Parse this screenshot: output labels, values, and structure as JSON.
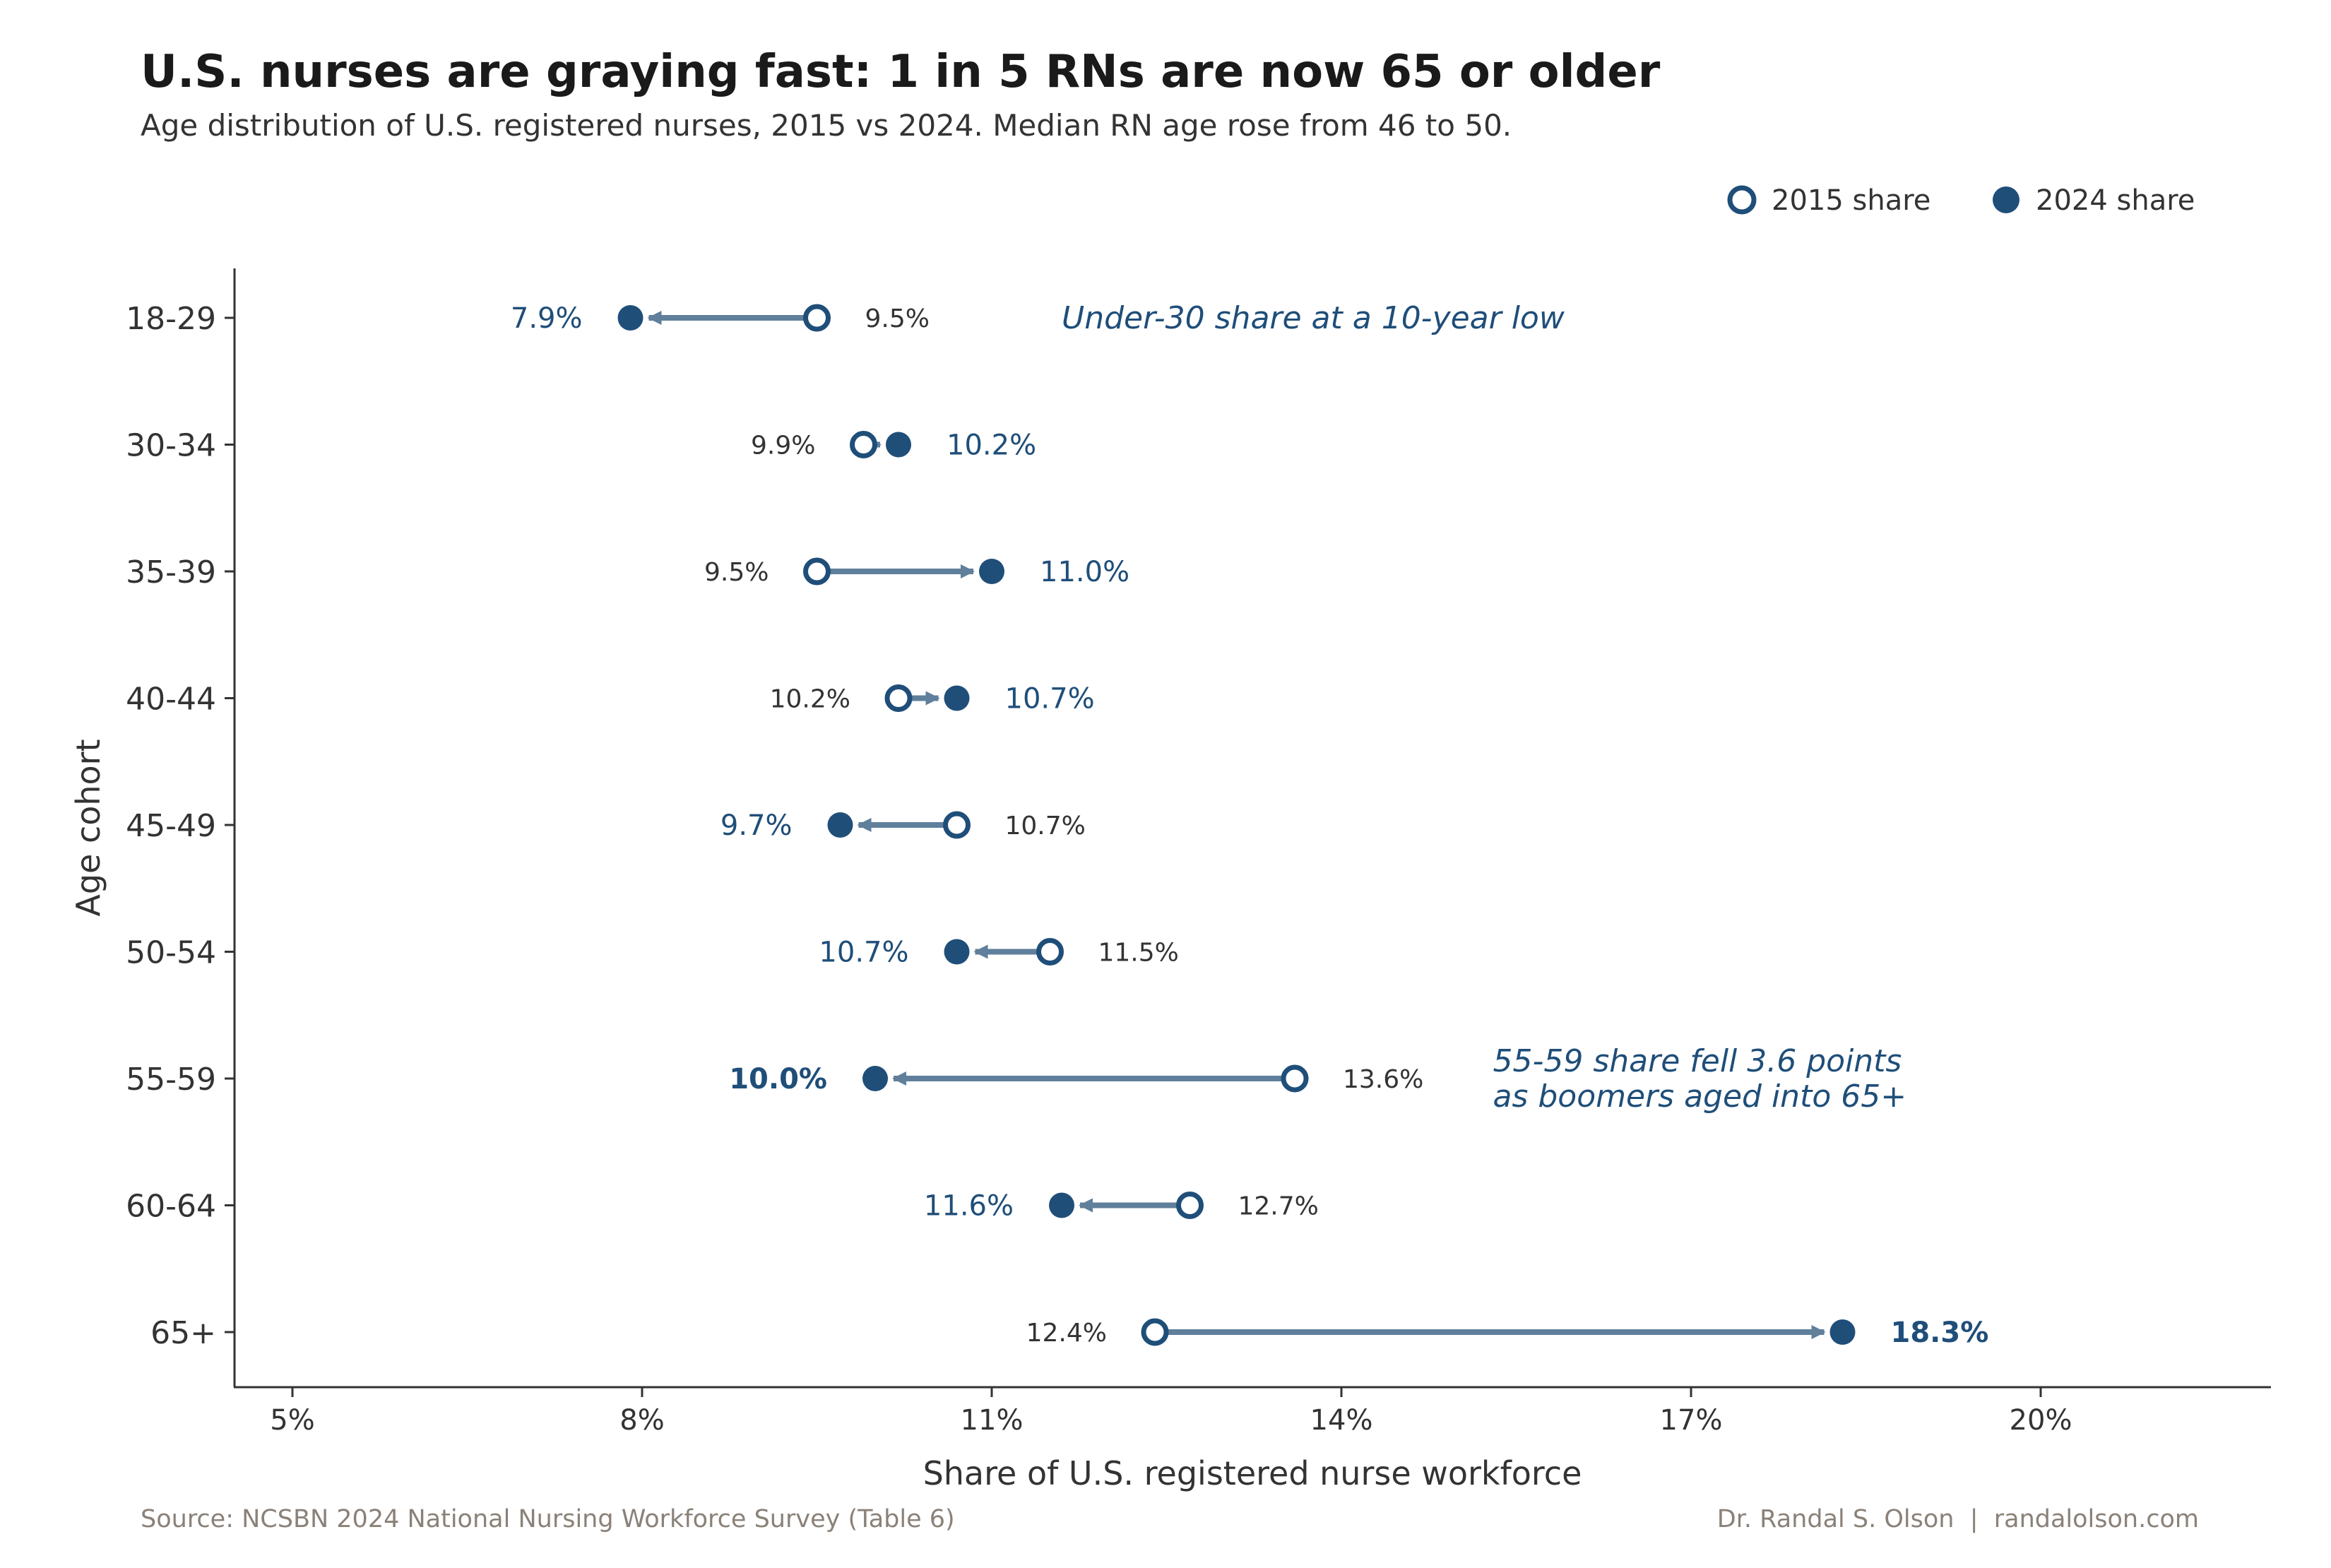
{
  "chart_data": {
    "type": "dumbbell",
    "title": "U.S. nurses are graying fast: 1 in 5 RNs are now 65 or older",
    "subtitle": "Age distribution of U.S. registered nurses, 2015 vs 2024. Median RN age rose from 46 to 50.",
    "xlabel": "Share of U.S. registered nurse workforce",
    "ylabel": "Age cohort",
    "xlim": [
      4.5,
      22
    ],
    "xticks": [
      5,
      8,
      11,
      14,
      17,
      20
    ],
    "xtick_labels": [
      "5%",
      "8%",
      "11%",
      "14%",
      "17%",
      "20%"
    ],
    "categories": [
      "18-29",
      "30-34",
      "35-39",
      "40-44",
      "45-49",
      "50-54",
      "55-59",
      "60-64",
      "65+"
    ],
    "series": [
      {
        "name": "2015 share",
        "values": [
          9.5,
          9.9,
          9.5,
          10.2,
          10.7,
          11.5,
          13.6,
          12.7,
          12.4
        ]
      },
      {
        "name": "2024 share",
        "values": [
          7.9,
          10.2,
          11.0,
          10.7,
          9.7,
          10.7,
          10.0,
          11.6,
          18.3
        ]
      }
    ],
    "labels_2015": [
      "9.5%",
      "9.9%",
      "9.5%",
      "10.2%",
      "10.7%",
      "11.5%",
      "13.6%",
      "12.7%",
      "12.4%"
    ],
    "labels_2024": [
      "7.9%",
      "10.2%",
      "11.0%",
      "10.7%",
      "9.7%",
      "10.7%",
      "10.0%",
      "11.6%",
      "18.3%"
    ],
    "bold_2024": [
      false,
      false,
      false,
      false,
      false,
      false,
      true,
      false,
      true
    ],
    "legend_position": "top-right",
    "grid": false,
    "annotations": [
      {
        "lines": [
          "Under-30 share at a 10-year low"
        ],
        "x": 11.6,
        "row": 0
      },
      {
        "lines": [
          "55-59 share fell 3.6 points",
          "as boomers aged into 65+"
        ],
        "x": 15.3,
        "row": 6
      }
    ],
    "colors": {
      "marker": "#1f4e79",
      "connector": "#5f7f9b",
      "text_dark": "#1a1a1a",
      "text_mid": "#333333",
      "footer": "#8a8178"
    }
  },
  "footer": {
    "source": "Source: NCSBN 2024 National Nursing Workforce Survey (Table 6)",
    "credit": "Dr. Randal S. Olson  |  randalolson.com"
  }
}
